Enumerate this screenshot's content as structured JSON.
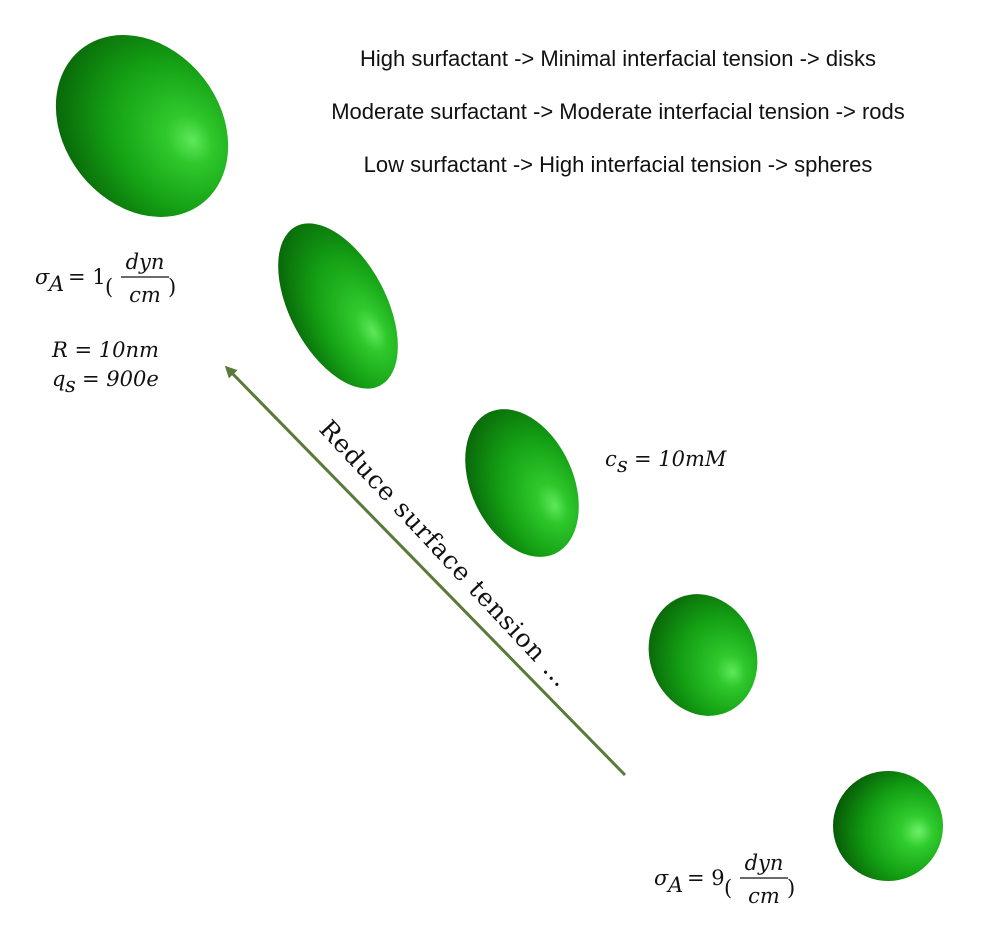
{
  "legend": {
    "lines": [
      "High surfactant -> Minimal interfacial tension -> disks",
      "Moderate surfactant -> Moderate interfacial tension -> rods",
      "Low surfactant -> High interfacial tension -> spheres"
    ]
  },
  "top_left": {
    "sigma_symbol": "σ",
    "sigma_sub": "A",
    "sigma_eq": "= 1",
    "frac_num": "dyn",
    "frac_den": "cm",
    "R_label": "R = 10nm",
    "q_symbol": "q",
    "q_sub": "s",
    "q_value": "= 900e"
  },
  "concentration": {
    "symbol": "c",
    "sub": "s",
    "value": "= 10mM"
  },
  "bottom_right": {
    "sigma_symbol": "σ",
    "sigma_sub": "A",
    "sigma_eq": "= 9",
    "frac_num": "dyn",
    "frac_den": "cm"
  },
  "arrow": {
    "label": "Reduce surface tension …",
    "color": "#5a7a3a"
  },
  "colors": {
    "droplet_light": "#5fe85a",
    "droplet_mid": "#14a014",
    "droplet_dark": "#065a06"
  }
}
